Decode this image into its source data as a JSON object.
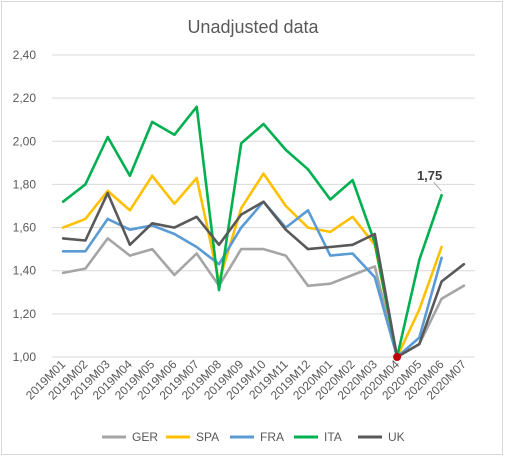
{
  "chart_data": {
    "type": "line",
    "title": "Unadjusted data",
    "xlabel": "",
    "ylabel": "",
    "ylim": [
      1.0,
      2.4
    ],
    "yticks": [
      "1,00",
      "1,20",
      "1,40",
      "1,60",
      "1,80",
      "2,00",
      "2,20",
      "2,40"
    ],
    "grid": true,
    "legend": "bottom",
    "categories": [
      "2019M01",
      "2019M02",
      "2019M03",
      "2019M04",
      "2019M05",
      "2019M06",
      "2019M07",
      "2019M08",
      "2019M09",
      "2019M10",
      "2019M11",
      "2019M12",
      "2020M01",
      "2020M02",
      "2020M03",
      "2020M04",
      "2020M05",
      "2020M06",
      "2020M07"
    ],
    "series": [
      {
        "name": "GER",
        "color": "#a5a5a5",
        "values": [
          1.39,
          1.41,
          1.55,
          1.47,
          1.5,
          1.38,
          1.48,
          1.33,
          1.5,
          1.5,
          1.47,
          1.33,
          1.34,
          1.38,
          1.42,
          1.0,
          1.06,
          1.27,
          1.33
        ]
      },
      {
        "name": "SPA",
        "color": "#ffc000",
        "values": [
          1.6,
          1.64,
          1.77,
          1.68,
          1.84,
          1.71,
          1.83,
          1.35,
          1.69,
          1.85,
          1.7,
          1.6,
          1.58,
          1.65,
          1.52,
          1.0,
          1.22,
          1.51,
          null
        ]
      },
      {
        "name": "FRA",
        "color": "#5b9bd5",
        "values": [
          1.49,
          1.49,
          1.64,
          1.59,
          1.61,
          1.57,
          1.51,
          1.43,
          1.6,
          1.72,
          1.6,
          1.68,
          1.47,
          1.48,
          1.37,
          1.0,
          1.09,
          1.46,
          null
        ]
      },
      {
        "name": "ITA",
        "color": "#00b050",
        "values": [
          1.72,
          1.8,
          2.02,
          1.84,
          2.09,
          2.03,
          2.16,
          1.31,
          1.99,
          2.08,
          1.96,
          1.87,
          1.73,
          1.82,
          1.53,
          1.0,
          1.45,
          1.75,
          null
        ]
      },
      {
        "name": "UK",
        "color": "#595959",
        "values": [
          1.55,
          1.54,
          1.76,
          1.52,
          1.62,
          1.6,
          1.65,
          1.52,
          1.66,
          1.72,
          1.59,
          1.5,
          1.51,
          1.52,
          1.57,
          1.0,
          1.06,
          1.35,
          1.43
        ]
      }
    ],
    "annotation": {
      "text": "1,75",
      "series": "ITA",
      "category": "2020M06"
    },
    "marker": {
      "category": "2020M04",
      "value": 1.0,
      "color": "#c00000"
    }
  }
}
